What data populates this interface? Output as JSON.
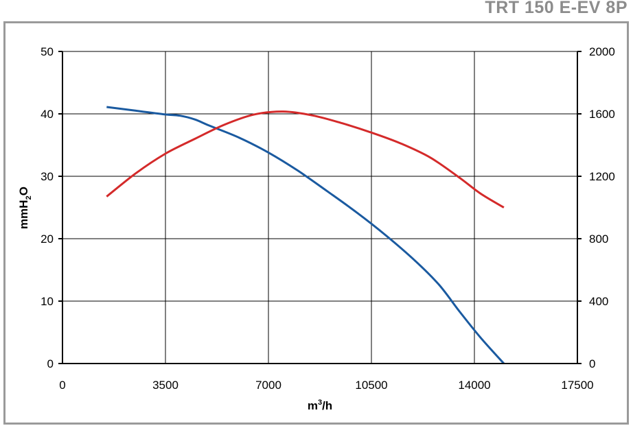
{
  "chart_data": {
    "type": "line",
    "title": "TRT 150 E-EV 8P",
    "xlabel": {
      "base": "m",
      "sup": "3",
      "rest": "/h"
    },
    "ylabel": {
      "base": "mmH",
      "sub": "2",
      "rest": "O"
    },
    "xlim": [
      0,
      17500
    ],
    "ylim": [
      0,
      50
    ],
    "y2lim": [
      0,
      2000
    ],
    "x_ticks": [
      0,
      3500,
      7000,
      10500,
      14000,
      17500
    ],
    "y_ticks": [
      0,
      10,
      20,
      30,
      40,
      50
    ],
    "y2_ticks": [
      0,
      400,
      800,
      1200,
      1600,
      2000
    ],
    "grid": true,
    "series": [
      {
        "axis": "left",
        "color": "#1a5aa0",
        "points": [
          [
            1500,
            41.1
          ],
          [
            2500,
            40.5
          ],
          [
            3500,
            39.9
          ],
          [
            4000,
            39.7
          ],
          [
            4500,
            39.1
          ],
          [
            5000,
            38.1
          ],
          [
            6000,
            36.2
          ],
          [
            7000,
            33.8
          ],
          [
            8000,
            30.9
          ],
          [
            9000,
            27.6
          ],
          [
            10000,
            24.2
          ],
          [
            11000,
            20.5
          ],
          [
            12000,
            16.4
          ],
          [
            12800,
            12.6
          ],
          [
            13500,
            8.3
          ],
          [
            14200,
            4.2
          ],
          [
            15000,
            0
          ]
        ]
      },
      {
        "axis": "right",
        "color": "#d42a2a",
        "points": [
          [
            1500,
            1070
          ],
          [
            2500,
            1220
          ],
          [
            3500,
            1345
          ],
          [
            4500,
            1440
          ],
          [
            5500,
            1530
          ],
          [
            6500,
            1595
          ],
          [
            7500,
            1615
          ],
          [
            8500,
            1590
          ],
          [
            9500,
            1540
          ],
          [
            10500,
            1480
          ],
          [
            11500,
            1410
          ],
          [
            12500,
            1320
          ],
          [
            13500,
            1190
          ],
          [
            14200,
            1090
          ],
          [
            15000,
            1000
          ]
        ]
      }
    ]
  }
}
